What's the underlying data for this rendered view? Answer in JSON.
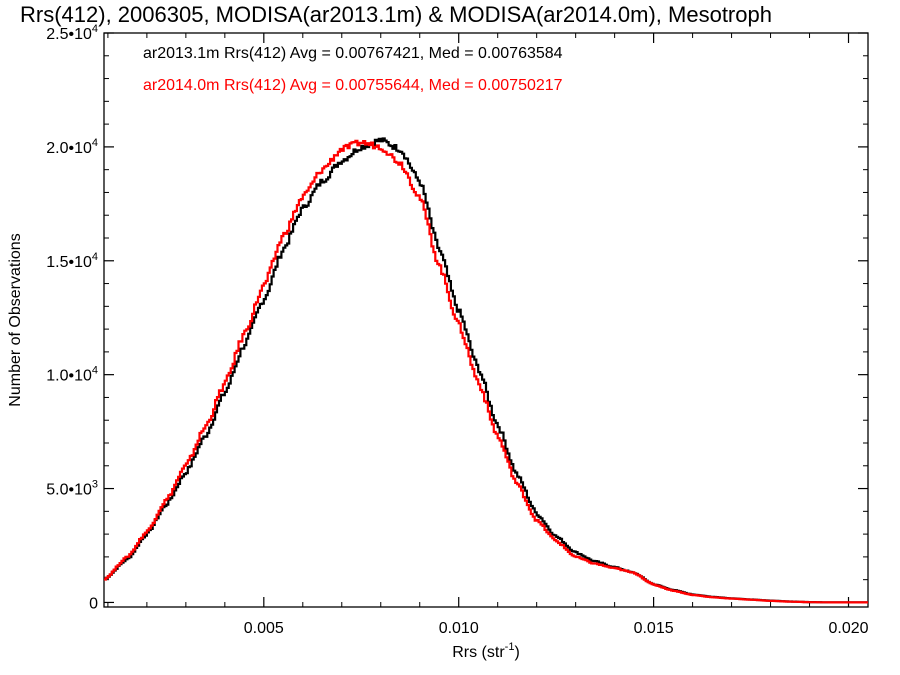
{
  "chart_data": {
    "type": "line",
    "title": "Rrs(412), 2006305, MODISA(ar2013.1m) & MODISA(ar2014.0m), Mesotroph",
    "xlabel": "Rrs (str",
    "xlabel_sup": "-1",
    "xlabel_close": ")",
    "ylabel": "Number of Observations",
    "xlim": [
      0.0009,
      0.0205
    ],
    "ylim": [
      -200,
      25000
    ],
    "x_ticks": [
      {
        "value": 0.005,
        "label": "0.005"
      },
      {
        "value": 0.01,
        "label": "0.010"
      },
      {
        "value": 0.015,
        "label": "0.015"
      },
      {
        "value": 0.02,
        "label": "0.020"
      }
    ],
    "y_ticks": [
      {
        "value": 0,
        "label": "0",
        "mant": "0",
        "exp": ""
      },
      {
        "value": 5000,
        "label": "5.0•10^3",
        "mant": "5.0•10",
        "exp": "3"
      },
      {
        "value": 10000,
        "label": "1.0•10^4",
        "mant": "1.0•10",
        "exp": "4"
      },
      {
        "value": 15000,
        "label": "1.5•10^4",
        "mant": "1.5•10",
        "exp": "4"
      },
      {
        "value": 20000,
        "label": "2.0•10^4",
        "mant": "2.0•10",
        "exp": "4"
      },
      {
        "value": 25000,
        "label": "2.5•10^4",
        "mant": "2.5•10",
        "exp": "4"
      }
    ],
    "legend_position": "top-left",
    "series": [
      {
        "name": "ar2013.1m",
        "color": "#000000",
        "legend": "ar2013.1m Rrs(412) Avg = 0.00767421, Med = 0.00763584",
        "points": [
          [
            0.0009,
            1000
          ],
          [
            0.0015,
            1900
          ],
          [
            0.002,
            3000
          ],
          [
            0.0025,
            4300
          ],
          [
            0.003,
            5700
          ],
          [
            0.0035,
            7300
          ],
          [
            0.004,
            9200
          ],
          [
            0.0045,
            11300
          ],
          [
            0.005,
            13300
          ],
          [
            0.0055,
            15500
          ],
          [
            0.006,
            17300
          ],
          [
            0.0065,
            18500
          ],
          [
            0.007,
            19400
          ],
          [
            0.0075,
            20000
          ],
          [
            0.008,
            20300
          ],
          [
            0.0085,
            19900
          ],
          [
            0.009,
            18500
          ],
          [
            0.0095,
            15500
          ],
          [
            0.01,
            12800
          ],
          [
            0.0105,
            10300
          ],
          [
            0.011,
            7800
          ],
          [
            0.0115,
            5600
          ],
          [
            0.012,
            3900
          ],
          [
            0.0125,
            2900
          ],
          [
            0.013,
            2200
          ],
          [
            0.0135,
            1800
          ],
          [
            0.014,
            1550
          ],
          [
            0.0145,
            1300
          ],
          [
            0.015,
            800
          ],
          [
            0.0155,
            550
          ],
          [
            0.016,
            350
          ],
          [
            0.0165,
            250
          ],
          [
            0.017,
            180
          ],
          [
            0.0175,
            130
          ],
          [
            0.018,
            80
          ],
          [
            0.0185,
            40
          ],
          [
            0.019,
            15
          ],
          [
            0.0195,
            5
          ],
          [
            0.0205,
            0
          ]
        ]
      },
      {
        "name": "ar2014.0m",
        "color": "#ff0000",
        "legend": "ar2014.0m Rrs(412) Avg = 0.00755644, Med = 0.00750217",
        "points": [
          [
            0.0009,
            1000
          ],
          [
            0.0015,
            2000
          ],
          [
            0.002,
            3100
          ],
          [
            0.0025,
            4500
          ],
          [
            0.003,
            6000
          ],
          [
            0.0035,
            7700
          ],
          [
            0.004,
            9600
          ],
          [
            0.0045,
            11800
          ],
          [
            0.005,
            13900
          ],
          [
            0.0055,
            16100
          ],
          [
            0.006,
            17800
          ],
          [
            0.0065,
            19000
          ],
          [
            0.007,
            19900
          ],
          [
            0.0075,
            20200
          ],
          [
            0.008,
            20000
          ],
          [
            0.0085,
            19300
          ],
          [
            0.009,
            17800
          ],
          [
            0.0095,
            14800
          ],
          [
            0.01,
            12200
          ],
          [
            0.0105,
            9700
          ],
          [
            0.011,
            7300
          ],
          [
            0.0115,
            5200
          ],
          [
            0.012,
            3600
          ],
          [
            0.0125,
            2700
          ],
          [
            0.013,
            2000
          ],
          [
            0.0135,
            1700
          ],
          [
            0.014,
            1500
          ],
          [
            0.0145,
            1300
          ],
          [
            0.015,
            780
          ],
          [
            0.0155,
            520
          ],
          [
            0.016,
            330
          ],
          [
            0.0165,
            230
          ],
          [
            0.017,
            170
          ],
          [
            0.0175,
            120
          ],
          [
            0.018,
            70
          ],
          [
            0.0185,
            35
          ],
          [
            0.019,
            12
          ],
          [
            0.0195,
            4
          ],
          [
            0.0205,
            0
          ]
        ]
      }
    ]
  }
}
